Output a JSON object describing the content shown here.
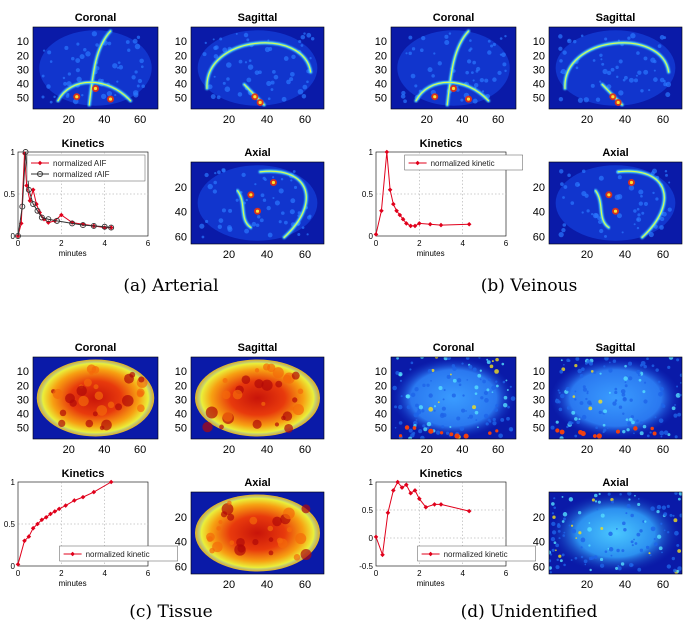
{
  "chart_data": [
    {
      "panel": "a",
      "caption": "(a) Arterial",
      "images": [
        {
          "title": "Coronal",
          "yticks": [
            "10",
            "20",
            "30",
            "40",
            "50"
          ],
          "xticks": [
            "20",
            "40",
            "60"
          ],
          "colormap": "jet",
          "background": "blue",
          "pattern": "vessels"
        },
        {
          "title": "Sagittal",
          "yticks": [
            "10",
            "20",
            "30",
            "40",
            "50"
          ],
          "xticks": [
            "20",
            "40",
            "60"
          ],
          "colormap": "jet",
          "background": "blue",
          "pattern": "vessels"
        },
        {
          "title": "Axial",
          "yticks": [
            "20",
            "40",
            "60"
          ],
          "xticks": [
            "20",
            "40",
            "60"
          ],
          "colormap": "jet",
          "background": "blue",
          "pattern": "vessels"
        }
      ],
      "kinetics": {
        "type": "line",
        "title": "Kinetics",
        "xlabel": "minutes",
        "xlim": [
          0,
          6
        ],
        "ylim": [
          0,
          1
        ],
        "xticks": [
          "0",
          "2",
          "4",
          "6"
        ],
        "yticks": [
          "0",
          "0.5",
          "1"
        ],
        "grid": "dotted",
        "legend": "top-right",
        "series": [
          {
            "name": "normalized AIF",
            "color": "#e0001b",
            "marker": "diamond",
            "x": [
              0,
              0.15,
              0.3,
              0.4,
              0.55,
              0.7,
              0.85,
              1.0,
              1.2,
              1.4,
              1.7,
              2.0,
              2.5,
              3.0,
              3.5,
              4.0,
              4.3
            ],
            "y": [
              0,
              0.15,
              0.98,
              0.6,
              0.42,
              0.55,
              0.38,
              0.28,
              0.2,
              0.16,
              0.18,
              0.25,
              0.16,
              0.14,
              0.12,
              0.1,
              0.1
            ]
          },
          {
            "name": "normalized rAIF",
            "color": "#333333",
            "marker": "circle",
            "x": [
              0,
              0.2,
              0.35,
              0.5,
              0.7,
              0.9,
              1.1,
              1.4,
              1.8,
              2.5,
              3.0,
              3.5,
              4.0,
              4.3
            ],
            "y": [
              0,
              0.35,
              1.0,
              0.55,
              0.38,
              0.3,
              0.22,
              0.2,
              0.18,
              0.15,
              0.13,
              0.12,
              0.11,
              0.1
            ]
          }
        ]
      }
    },
    {
      "panel": "b",
      "caption": "(b) Veinous",
      "images": [
        {
          "title": "Coronal",
          "yticks": [
            "10",
            "20",
            "30",
            "40",
            "50"
          ],
          "xticks": [
            "20",
            "40",
            "60"
          ],
          "colormap": "jet",
          "background": "blue",
          "pattern": "vessels"
        },
        {
          "title": "Sagittal",
          "yticks": [
            "10",
            "20",
            "30",
            "40",
            "50"
          ],
          "xticks": [
            "20",
            "40",
            "60"
          ],
          "colormap": "jet",
          "background": "blue",
          "pattern": "vessels"
        },
        {
          "title": "Axial",
          "yticks": [
            "20",
            "40",
            "60"
          ],
          "xticks": [
            "20",
            "40",
            "60"
          ],
          "colormap": "jet",
          "background": "blue",
          "pattern": "vessels"
        }
      ],
      "kinetics": {
        "type": "line",
        "title": "Kinetics",
        "xlabel": "minutes",
        "xlim": [
          0,
          6
        ],
        "ylim": [
          0,
          1
        ],
        "xticks": [
          "0",
          "2",
          "4",
          "6"
        ],
        "yticks": [
          "0",
          "0.5",
          "1"
        ],
        "grid": "dotted",
        "legend": "top",
        "series": [
          {
            "name": "normalized kinetic",
            "color": "#e0001b",
            "marker": "diamond",
            "x": [
              0,
              0.25,
              0.5,
              0.65,
              0.8,
              0.95,
              1.1,
              1.25,
              1.4,
              1.6,
              1.8,
              2.0,
              2.5,
              3.0,
              4.3
            ],
            "y": [
              0.02,
              0.3,
              1.0,
              0.55,
              0.38,
              0.3,
              0.25,
              0.2,
              0.15,
              0.12,
              0.12,
              0.15,
              0.14,
              0.13,
              0.14
            ]
          }
        ]
      }
    },
    {
      "panel": "c",
      "caption": "(c) Tissue",
      "images": [
        {
          "title": "Coronal",
          "yticks": [
            "10",
            "20",
            "30",
            "40",
            "50"
          ],
          "xticks": [
            "20",
            "40",
            "60"
          ],
          "colormap": "jet",
          "background": "blue",
          "pattern": "tissue"
        },
        {
          "title": "Sagittal",
          "yticks": [
            "10",
            "20",
            "30",
            "40",
            "50"
          ],
          "xticks": [
            "20",
            "40",
            "60"
          ],
          "colormap": "jet",
          "background": "blue",
          "pattern": "tissue"
        },
        {
          "title": "Axial",
          "yticks": [
            "20",
            "40",
            "60"
          ],
          "xticks": [
            "20",
            "40",
            "60"
          ],
          "colormap": "jet",
          "background": "blue",
          "pattern": "tissue"
        }
      ],
      "kinetics": {
        "type": "line",
        "title": "Kinetics",
        "xlabel": "minutes",
        "xlim": [
          0,
          6
        ],
        "ylim": [
          0,
          1
        ],
        "xticks": [
          "0",
          "2",
          "4",
          "6"
        ],
        "yticks": [
          "0",
          "0.5",
          "1"
        ],
        "grid": "dotted",
        "legend": "bottom-center",
        "series": [
          {
            "name": "normalized kinetic",
            "color": "#e0001b",
            "marker": "diamond",
            "x": [
              0,
              0.3,
              0.5,
              0.7,
              0.9,
              1.1,
              1.3,
              1.5,
              1.7,
              1.9,
              2.2,
              2.6,
              3.0,
              3.5,
              4.3
            ],
            "y": [
              0.02,
              0.3,
              0.35,
              0.45,
              0.5,
              0.55,
              0.58,
              0.62,
              0.65,
              0.68,
              0.72,
              0.78,
              0.82,
              0.88,
              1.0
            ]
          }
        ]
      }
    },
    {
      "panel": "d",
      "caption": "(d) Unidentified",
      "images": [
        {
          "title": "Coronal",
          "yticks": [
            "10",
            "20",
            "30",
            "40",
            "50"
          ],
          "xticks": [
            "20",
            "40",
            "60"
          ],
          "colormap": "jet",
          "background": "blue",
          "pattern": "noise"
        },
        {
          "title": "Sagittal",
          "yticks": [
            "10",
            "20",
            "30",
            "40",
            "50"
          ],
          "xticks": [
            "20",
            "40",
            "60"
          ],
          "colormap": "jet",
          "background": "blue",
          "pattern": "noise"
        },
        {
          "title": "Axial",
          "yticks": [
            "20",
            "40",
            "60"
          ],
          "xticks": [
            "20",
            "40",
            "60"
          ],
          "colormap": "jet",
          "background": "blue",
          "pattern": "noise"
        }
      ],
      "kinetics": {
        "type": "line",
        "title": "Kinetics",
        "xlabel": "minutes",
        "xlim": [
          0,
          6
        ],
        "ylim": [
          -0.5,
          1
        ],
        "xticks": [
          "0",
          "2",
          "4",
          "6"
        ],
        "yticks": [
          "-0.5",
          "0",
          "0.5",
          "1"
        ],
        "grid": "dotted",
        "legend": "bottom-center",
        "series": [
          {
            "name": "normalized kinetic",
            "color": "#e0001b",
            "marker": "diamond",
            "x": [
              0,
              0.3,
              0.55,
              0.8,
              1.0,
              1.2,
              1.4,
              1.6,
              1.8,
              2.0,
              2.3,
              2.7,
              3.0,
              4.3
            ],
            "y": [
              0.02,
              -0.3,
              0.45,
              0.85,
              1.0,
              0.9,
              0.95,
              0.8,
              0.85,
              0.7,
              0.55,
              0.6,
              0.6,
              0.48
            ]
          }
        ]
      }
    }
  ]
}
